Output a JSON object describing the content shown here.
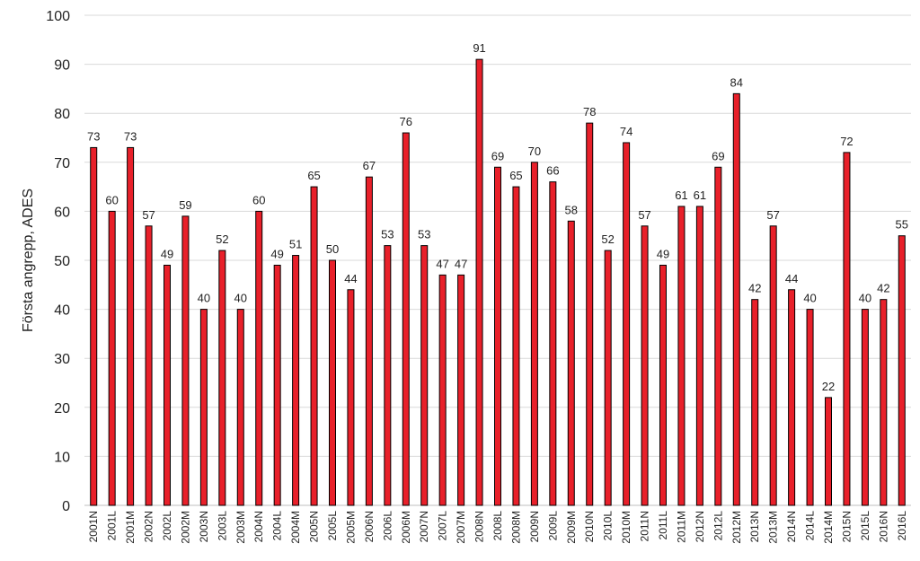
{
  "chart_data": {
    "type": "bar",
    "ylabel": "Första angrepp, ADES",
    "ylim": [
      0,
      100
    ],
    "yticks": [
      0,
      10,
      20,
      30,
      40,
      50,
      60,
      70,
      80,
      90,
      100
    ],
    "grid": true,
    "bar_color": "#e8202a",
    "bar_edge_color": "#000000",
    "categories": [
      "2001N",
      "2001L",
      "2001M",
      "2002N",
      "2002L",
      "2002M",
      "2003N",
      "2003L",
      "2003M",
      "2004N",
      "2004L",
      "2004M",
      "2005N",
      "2005L",
      "2005M",
      "2006N",
      "2006L",
      "2006M",
      "2007N",
      "2007L",
      "2007M",
      "2008N",
      "2008L",
      "2008M",
      "2009N",
      "2009L",
      "2009M",
      "2010N",
      "2010L",
      "2010M",
      "2011N",
      "2011L",
      "2011M",
      "2012N",
      "2012L",
      "2012M",
      "2013N",
      "2013M",
      "2014N",
      "2014L",
      "2014M",
      "2015N",
      "2015L",
      "2016N",
      "2016L"
    ],
    "values": [
      73,
      60,
      73,
      57,
      49,
      59,
      40,
      52,
      40,
      60,
      49,
      51,
      65,
      50,
      44,
      67,
      53,
      76,
      53,
      47,
      47,
      91,
      69,
      65,
      70,
      66,
      58,
      78,
      52,
      74,
      57,
      49,
      61,
      61,
      69,
      84,
      42,
      57,
      44,
      40,
      22,
      72,
      40,
      42,
      55
    ]
  }
}
